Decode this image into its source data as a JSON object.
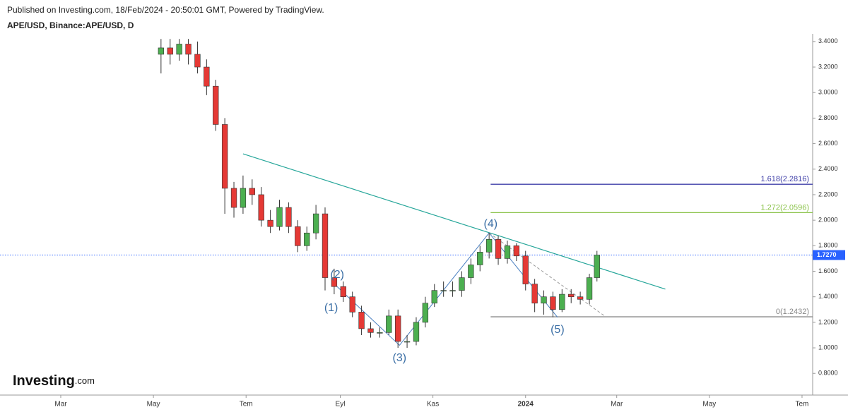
{
  "header": {
    "published": "Published on Investing.com, 18/Feb/2024 - 20:50:01 GMT, Powered by TradingView.",
    "symbol": "APE/USD, Binance:APE/USD, D"
  },
  "logo": {
    "brand": "Investing",
    "suffix": ".com"
  },
  "chart_data": {
    "type": "candlestick",
    "x": [
      66,
      72,
      78,
      84,
      90,
      96,
      102,
      108,
      114,
      120,
      126,
      132,
      138,
      144,
      150,
      156,
      162,
      168,
      174,
      180,
      186,
      192,
      198,
      204,
      210,
      216,
      222,
      228,
      234,
      240,
      246,
      252,
      258,
      264,
      270,
      276,
      282,
      288,
      294,
      300,
      306,
      312,
      318,
      324,
      330,
      336,
      342,
      348,
      353
    ],
    "open": [
      3.3,
      3.35,
      3.3,
      3.38,
      3.3,
      3.2,
      3.05,
      2.75,
      2.25,
      2.1,
      2.25,
      2.2,
      2.0,
      1.95,
      2.1,
      1.95,
      1.8,
      1.9,
      2.05,
      1.55,
      1.48,
      1.4,
      1.28,
      1.15,
      1.12,
      1.12,
      1.25,
      1.05,
      1.05,
      1.2,
      1.35,
      1.45,
      1.45,
      1.45,
      1.55,
      1.65,
      1.75,
      1.85,
      1.7,
      1.8,
      1.72,
      1.5,
      1.35,
      1.4,
      1.3,
      1.42,
      1.4,
      1.38,
      1.55
    ],
    "high": [
      3.42,
      3.42,
      3.42,
      3.42,
      3.4,
      3.26,
      3.1,
      2.8,
      2.3,
      2.35,
      2.32,
      2.26,
      2.08,
      2.16,
      2.14,
      2.0,
      1.95,
      2.12,
      2.1,
      1.62,
      1.52,
      1.44,
      1.33,
      1.2,
      1.16,
      1.3,
      1.3,
      1.1,
      1.24,
      1.4,
      1.5,
      1.52,
      1.52,
      1.6,
      1.7,
      1.8,
      1.9,
      1.88,
      1.84,
      1.82,
      1.76,
      1.54,
      1.45,
      1.44,
      1.46,
      1.46,
      1.44,
      1.58,
      1.76
    ],
    "low": [
      3.15,
      3.22,
      3.25,
      3.22,
      3.15,
      2.98,
      2.7,
      2.05,
      2.02,
      2.05,
      2.12,
      1.95,
      1.9,
      1.92,
      1.9,
      1.75,
      1.76,
      1.85,
      1.45,
      1.42,
      1.36,
      1.24,
      1.1,
      1.08,
      1.08,
      1.1,
      1.0,
      1.0,
      1.02,
      1.16,
      1.32,
      1.4,
      1.4,
      1.4,
      1.5,
      1.6,
      1.7,
      1.65,
      1.66,
      1.68,
      1.45,
      1.28,
      1.26,
      1.24,
      1.28,
      1.35,
      1.34,
      1.34,
      1.52
    ],
    "close": [
      3.35,
      3.3,
      3.38,
      3.3,
      3.2,
      3.05,
      2.75,
      2.25,
      2.1,
      2.25,
      2.2,
      2.0,
      1.95,
      2.1,
      1.95,
      1.8,
      1.9,
      2.05,
      1.55,
      1.48,
      1.4,
      1.28,
      1.15,
      1.12,
      1.12,
      1.25,
      1.05,
      1.05,
      1.2,
      1.35,
      1.45,
      1.45,
      1.45,
      1.55,
      1.65,
      1.75,
      1.85,
      1.7,
      1.8,
      1.72,
      1.5,
      1.35,
      1.4,
      1.3,
      1.42,
      1.4,
      1.38,
      1.55,
      1.727
    ],
    "up_color": "#4caf50",
    "down_color": "#e53935",
    "xlim": [
      -40,
      495
    ],
    "xticks": [
      {
        "value": 0,
        "label": "Mar"
      },
      {
        "value": 61,
        "label": "May"
      },
      {
        "value": 122,
        "label": "Tem"
      },
      {
        "value": 184,
        "label": "Eyl"
      },
      {
        "value": 245,
        "label": "Kas"
      },
      {
        "value": 306,
        "label": "2024"
      },
      {
        "value": 366,
        "label": "Mar"
      },
      {
        "value": 427,
        "label": "May"
      },
      {
        "value": 488,
        "label": "Tem"
      }
    ],
    "ylim": [
      0.63,
      3.46
    ],
    "yticks": [
      {
        "value": 0.8,
        "label": "0.8000"
      },
      {
        "value": 1.0,
        "label": "1.0000"
      },
      {
        "value": 1.2,
        "label": "1.2000"
      },
      {
        "value": 1.4,
        "label": "1.4000"
      },
      {
        "value": 1.6,
        "label": "1.6000"
      },
      {
        "value": 1.8,
        "label": "1.8000"
      },
      {
        "value": 2.0,
        "label": "2.0000"
      },
      {
        "value": 2.2,
        "label": "2.2000"
      },
      {
        "value": 2.4,
        "label": "2.4000"
      },
      {
        "value": 2.6,
        "label": "2.6000"
      },
      {
        "value": 2.8,
        "label": "2.8000"
      },
      {
        "value": 3.0,
        "label": "3.0000"
      },
      {
        "value": 3.2,
        "label": "3.2000"
      },
      {
        "value": 3.4,
        "label": "3.4000"
      }
    ],
    "last_price": {
      "value": 1.727,
      "label": "1.7270",
      "color": "#2962ff"
    },
    "trendline": {
      "x": [
        120,
        398
      ],
      "y": [
        2.52,
        1.46
      ],
      "color": "#26a69a"
    },
    "wave_lines": {
      "x": [
        181,
        223,
        282,
        327
      ],
      "y": [
        1.49,
        1.02,
        1.9,
        1.24
      ],
      "color": "#4a7fc1"
    },
    "projection": {
      "x": [
        282,
        358
      ],
      "y": [
        1.9,
        1.25
      ],
      "color": "#999999"
    },
    "fib_levels": [
      {
        "label": "1.618(2.2816)",
        "value": 2.2816,
        "start": 283,
        "color": "#3f3fa8"
      },
      {
        "label": "1.272(2.0596)",
        "value": 2.0596,
        "start": 283,
        "color": "#8bc34a"
      },
      {
        "label": "0(1.2432)",
        "value": 1.2432,
        "start": 283,
        "color": "#888888"
      }
    ],
    "waves": [
      {
        "label": "(1)",
        "x": 178,
        "y": 1.31
      },
      {
        "label": "(2)",
        "x": 182,
        "y": 1.57
      },
      {
        "label": "(3)",
        "x": 223,
        "y": 0.92
      },
      {
        "label": "(4)",
        "x": 283,
        "y": 1.97
      },
      {
        "label": "(5)",
        "x": 327,
        "y": 1.14
      }
    ]
  }
}
